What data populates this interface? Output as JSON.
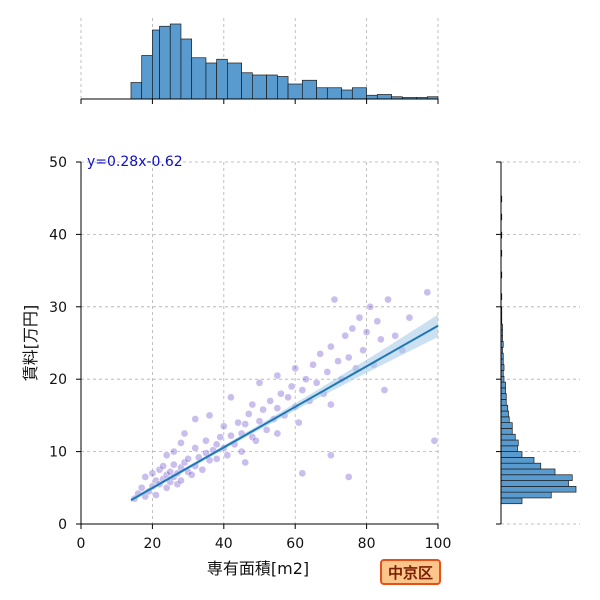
{
  "chart_data": {
    "type": "scatter",
    "xlabel": "専有面積[m2]",
    "ylabel": "賃料[万円]",
    "xlim": [
      0,
      100
    ],
    "ylim": [
      0,
      50
    ],
    "xticks": [
      "0",
      "20",
      "40",
      "60",
      "80",
      "100"
    ],
    "yticks": [
      "0",
      "10",
      "20",
      "30",
      "40",
      "50"
    ],
    "grid": true,
    "regression": {
      "equation": "y=0.28x-0.62",
      "slope": 0.28,
      "intercept": -0.62,
      "x_range": [
        14,
        100
      ]
    },
    "scatter_sample": [
      [
        15,
        3.5
      ],
      [
        16,
        4.2
      ],
      [
        17,
        5.0
      ],
      [
        18,
        3.8
      ],
      [
        18,
        6.5
      ],
      [
        19,
        4.5
      ],
      [
        20,
        5.2
      ],
      [
        20,
        7.0
      ],
      [
        21,
        6.0
      ],
      [
        21,
        4.0
      ],
      [
        22,
        5.5
      ],
      [
        22,
        7.5
      ],
      [
        23,
        6.2
      ],
      [
        23,
        8.0
      ],
      [
        24,
        5.0
      ],
      [
        24,
        6.8
      ],
      [
        25,
        7.2
      ],
      [
        25,
        5.8
      ],
      [
        26,
        6.5
      ],
      [
        26,
        8.2
      ],
      [
        27,
        7.0
      ],
      [
        27,
        5.5
      ],
      [
        28,
        7.8
      ],
      [
        28,
        6.0
      ],
      [
        29,
        8.5
      ],
      [
        30,
        7.2
      ],
      [
        30,
        9.0
      ],
      [
        31,
        6.8
      ],
      [
        32,
        8.0
      ],
      [
        32,
        10.5
      ],
      [
        33,
        9.2
      ],
      [
        34,
        7.5
      ],
      [
        35,
        9.8
      ],
      [
        35,
        11.5
      ],
      [
        36,
        8.8
      ],
      [
        37,
        10.2
      ],
      [
        38,
        11.0
      ],
      [
        38,
        9.0
      ],
      [
        39,
        12.0
      ],
      [
        40,
        10.5
      ],
      [
        40,
        13.5
      ],
      [
        41,
        9.5
      ],
      [
        42,
        12.2
      ],
      [
        43,
        11.0
      ],
      [
        44,
        14.0
      ],
      [
        45,
        12.5
      ],
      [
        45,
        10.0
      ],
      [
        46,
        13.8
      ],
      [
        47,
        15.2
      ],
      [
        48,
        12.0
      ],
      [
        48,
        16.5
      ],
      [
        49,
        11.5
      ],
      [
        50,
        14.2
      ],
      [
        51,
        15.8
      ],
      [
        52,
        13.0
      ],
      [
        53,
        17.0
      ],
      [
        54,
        14.5
      ],
      [
        55,
        16.0
      ],
      [
        55,
        12.5
      ],
      [
        56,
        18.0
      ],
      [
        57,
        15.0
      ],
      [
        58,
        17.5
      ],
      [
        59,
        19.0
      ],
      [
        60,
        16.2
      ],
      [
        60,
        21.5
      ],
      [
        61,
        14.0
      ],
      [
        62,
        18.5
      ],
      [
        63,
        20.0
      ],
      [
        64,
        17.0
      ],
      [
        65,
        22.0
      ],
      [
        66,
        19.5
      ],
      [
        67,
        23.5
      ],
      [
        68,
        18.0
      ],
      [
        69,
        21.0
      ],
      [
        70,
        24.5
      ],
      [
        70,
        16.5
      ],
      [
        71,
        31.0
      ],
      [
        72,
        22.5
      ],
      [
        73,
        20.0
      ],
      [
        74,
        26.0
      ],
      [
        75,
        23.0
      ],
      [
        76,
        27.0
      ],
      [
        77,
        21.5
      ],
      [
        78,
        28.5
      ],
      [
        79,
        24.0
      ],
      [
        80,
        26.5
      ],
      [
        81,
        30.0
      ],
      [
        82,
        22.0
      ],
      [
        83,
        28.0
      ],
      [
        84,
        25.5
      ],
      [
        86,
        31.0
      ],
      [
        88,
        26.0
      ],
      [
        90,
        24.0
      ],
      [
        92,
        28.5
      ],
      [
        97,
        32.0
      ],
      [
        99,
        11.5
      ],
      [
        75,
        6.5
      ],
      [
        70,
        9.5
      ],
      [
        62,
        7.0
      ],
      [
        85,
        18.5
      ],
      [
        29,
        12.5
      ],
      [
        32,
        14.5
      ],
      [
        36,
        15.0
      ],
      [
        28,
        11.2
      ],
      [
        24,
        9.5
      ],
      [
        26,
        10.0
      ],
      [
        42,
        17.5
      ],
      [
        50,
        19.5
      ],
      [
        55,
        20.5
      ],
      [
        46,
        8.5
      ]
    ],
    "x_histogram": {
      "range": [
        0,
        100
      ],
      "bins": [
        [
          14,
          17,
          0.22
        ],
        [
          17,
          20,
          0.58
        ],
        [
          20,
          22,
          0.92
        ],
        [
          22,
          25,
          0.97
        ],
        [
          25,
          28,
          1.0
        ],
        [
          28,
          31,
          0.8
        ],
        [
          31,
          35,
          0.55
        ],
        [
          35,
          38,
          0.48
        ],
        [
          38,
          41,
          0.53
        ],
        [
          41,
          45,
          0.48
        ],
        [
          45,
          48,
          0.35
        ],
        [
          48,
          52,
          0.32
        ],
        [
          52,
          55,
          0.32
        ],
        [
          55,
          58,
          0.3
        ],
        [
          58,
          62,
          0.2
        ],
        [
          62,
          66,
          0.25
        ],
        [
          66,
          69,
          0.15
        ],
        [
          69,
          73,
          0.15
        ],
        [
          73,
          76,
          0.12
        ],
        [
          76,
          80,
          0.15
        ],
        [
          80,
          83,
          0.05
        ],
        [
          83,
          87,
          0.06
        ],
        [
          87,
          90,
          0.03
        ],
        [
          90,
          94,
          0.02
        ],
        [
          94,
          97,
          0.02
        ],
        [
          97,
          100,
          0.03
        ]
      ]
    },
    "y_histogram": {
      "range": [
        0,
        50
      ],
      "bins": [
        [
          2.8,
          3.6,
          0.28
        ],
        [
          3.6,
          4.4,
          0.67
        ],
        [
          4.4,
          5.2,
          1.0
        ],
        [
          5.2,
          6.0,
          0.9
        ],
        [
          6.0,
          6.8,
          0.95
        ],
        [
          6.8,
          7.6,
          0.72
        ],
        [
          7.6,
          8.4,
          0.53
        ],
        [
          8.4,
          9.2,
          0.44
        ],
        [
          9.2,
          10.0,
          0.28
        ],
        [
          10.0,
          10.8,
          0.22
        ],
        [
          10.8,
          11.6,
          0.23
        ],
        [
          11.6,
          12.4,
          0.19
        ],
        [
          12.4,
          13.2,
          0.15
        ],
        [
          13.2,
          14.0,
          0.15
        ],
        [
          14.0,
          14.8,
          0.11
        ],
        [
          14.8,
          15.6,
          0.1
        ],
        [
          15.6,
          16.4,
          0.09
        ],
        [
          16.4,
          17.2,
          0.07
        ],
        [
          17.2,
          18.0,
          0.07
        ],
        [
          18.0,
          18.8,
          0.06
        ],
        [
          18.8,
          19.6,
          0.06
        ],
        [
          19.6,
          20.4,
          0.04
        ],
        [
          20.4,
          21.2,
          0.03
        ],
        [
          21.2,
          22.0,
          0.04
        ],
        [
          22.0,
          22.8,
          0.03
        ],
        [
          22.8,
          23.6,
          0.03
        ],
        [
          23.6,
          24.4,
          0.02
        ],
        [
          24.4,
          25.2,
          0.03
        ],
        [
          25.2,
          26.0,
          0.02
        ],
        [
          26.0,
          26.8,
          0.02
        ],
        [
          26.8,
          27.6,
          0.02
        ],
        [
          27.6,
          28.4,
          0.01
        ],
        [
          28.4,
          29.2,
          0.01
        ],
        [
          29.2,
          30.0,
          0.01
        ],
        [
          31.0,
          31.8,
          0.01
        ],
        [
          34.0,
          34.8,
          0.01
        ],
        [
          37.0,
          37.8,
          0.01
        ],
        [
          39.5,
          40.3,
          0.01
        ],
        [
          42.0,
          42.8,
          0.01
        ],
        [
          44.5,
          45.3,
          0.01
        ]
      ]
    },
    "colors": {
      "scatter": "#4f2bbf",
      "regression": "#1f77b4",
      "confidence_band": "#a9cdea",
      "histogram_fill": "#5a9bcf",
      "histogram_edge": "#1a1a1a",
      "grid": "#b0b0b0",
      "equation_text": "#1010c0"
    }
  },
  "badge": {
    "label": "中京区",
    "fill": "#fbc58c",
    "border": "#e8501a",
    "text_color": "#7a1e00"
  }
}
